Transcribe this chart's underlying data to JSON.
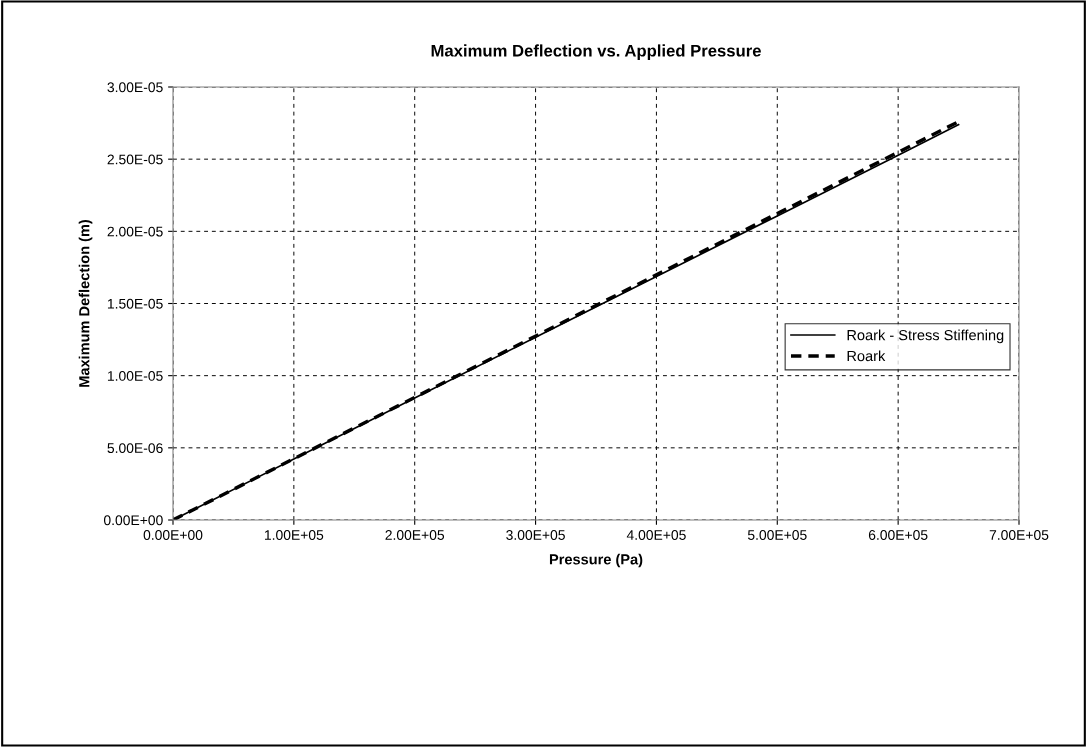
{
  "chart_data": {
    "type": "line",
    "title": "Maximum Deflection vs. Applied Pressure",
    "xlabel": "Pressure (Pa)",
    "ylabel": "Maximum Deflection (m)",
    "series": [
      {
        "name": "Roark - Stress Stiffening",
        "color": "#000000",
        "line_style": "solid",
        "x": [
          0,
          100000,
          200000,
          300000,
          400000,
          500000,
          600000,
          650000
        ],
        "values": [
          0,
          4.23e-06,
          8.45e-06,
          1.266e-05,
          1.687e-05,
          2.107e-05,
          2.527e-05,
          2.74e-05
        ]
      },
      {
        "name": "Roark",
        "color": "#000000",
        "line_style": "dashed",
        "x": [
          0,
          650000
        ],
        "values": [
          0,
          2.76e-05
        ]
      }
    ],
    "xlim": [
      0,
      700000
    ],
    "ylim": [
      0,
      3e-05
    ],
    "xticks": [
      {
        "value": 0,
        "label": "0.00E+00"
      },
      {
        "value": 100000,
        "label": "1.00E+05"
      },
      {
        "value": 200000,
        "label": "2.00E+05"
      },
      {
        "value": 300000,
        "label": "3.00E+05"
      },
      {
        "value": 400000,
        "label": "4.00E+05"
      },
      {
        "value": 500000,
        "label": "5.00E+05"
      },
      {
        "value": 600000,
        "label": "6.00E+05"
      },
      {
        "value": 700000,
        "label": "7.00E+05"
      }
    ],
    "yticks": [
      {
        "value": 0,
        "label": "0.00E+00"
      },
      {
        "value": 5e-06,
        "label": "5.00E-06"
      },
      {
        "value": 1e-05,
        "label": "1.00E-05"
      },
      {
        "value": 1.5e-05,
        "label": "1.50E-05"
      },
      {
        "value": 2e-05,
        "label": "2.00E-05"
      },
      {
        "value": 2.5e-05,
        "label": "2.50E-05"
      },
      {
        "value": 3e-05,
        "label": "3.00E-05"
      }
    ],
    "grid": true,
    "legend": "right",
    "marker": "none"
  }
}
